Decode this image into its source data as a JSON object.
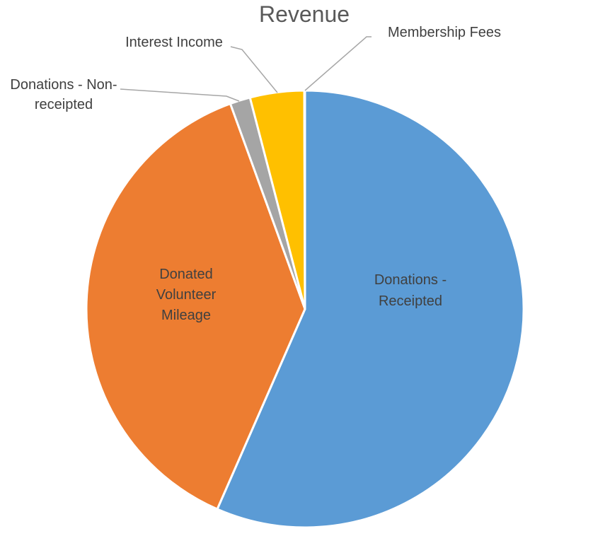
{
  "chart_data": {
    "type": "pie",
    "title": "Revenue",
    "slices": [
      {
        "name": "Donations - Receipted",
        "label_lines": [
          "Donations -",
          "Receipted"
        ],
        "value": 56.6,
        "color": "#5B9BD5",
        "label_color": "#404040"
      },
      {
        "name": "Donated Volunteer Mileage",
        "label_lines": [
          "Donated",
          "Volunteer",
          "Mileage"
        ],
        "value": 37.9,
        "color": "#ED7D31",
        "label_color": "#404040"
      },
      {
        "name": "Donations - Non-receipted",
        "label_lines": [
          "Donations - Non-",
          "receipted"
        ],
        "value": 1.5,
        "color": "#A5A5A5",
        "label_color": "#404040"
      },
      {
        "name": "Interest Income",
        "label_lines": [
          "Interest Income"
        ],
        "value": 4.0,
        "color": "#FFC000",
        "label_color": "#404040"
      },
      {
        "name": "Membership Fees",
        "label_lines": [
          "Membership Fees"
        ],
        "value": 0.05,
        "color": "#70AD47",
        "label_color": "#404040"
      }
    ],
    "data_labels": "category-names",
    "legend": "none",
    "start_angle_deg": 0,
    "direction": "clockwise"
  }
}
